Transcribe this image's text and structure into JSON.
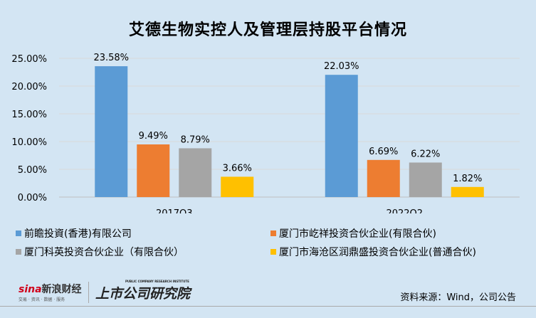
{
  "chart_data": {
    "type": "bar",
    "title": "艾德生物实控人及管理层持股平台情况",
    "categories": [
      "2017Q3",
      "2022Q2"
    ],
    "series": [
      {
        "name": "前瞻投資(香港)有限公司",
        "color": "#5b9bd5",
        "values": [
          23.58,
          22.03
        ],
        "labels": [
          "23.58%",
          "22.03%"
        ]
      },
      {
        "name": "厦门市屹祥投资合伙企业(有限合伙)",
        "color": "#ed7d31",
        "values": [
          9.49,
          6.69
        ],
        "labels": [
          "9.49%",
          "6.69%"
        ]
      },
      {
        "name": "厦门科英投资合伙企业（有限合伙）",
        "color": "#a5a5a5",
        "values": [
          8.79,
          6.22
        ],
        "labels": [
          "8.79%",
          "6.22%"
        ]
      },
      {
        "name": "厦门市海沧区润鼎盛投资合伙企业(普通合伙)",
        "color": "#ffc000",
        "values": [
          3.66,
          1.82
        ],
        "labels": [
          "3.66%",
          "1.82%"
        ]
      }
    ],
    "yticks": [
      "0.00%",
      "5.00%",
      "10.00%",
      "15.00%",
      "20.00%",
      "25.00%"
    ],
    "ylim": [
      0,
      25
    ],
    "xlabel": "",
    "ylabel": "",
    "grid": true,
    "legend": "bottom"
  },
  "source": "资料来源：Wind，公司公告",
  "logos": {
    "sina": "sina",
    "sina_cn": "新浪财经",
    "sina_sub": "交易 · 资讯 · 数据 · 服务",
    "institute": "上市公司研究院",
    "institute_en": "PUBLIC COMPANY RESEARCH INSTITUTE"
  }
}
